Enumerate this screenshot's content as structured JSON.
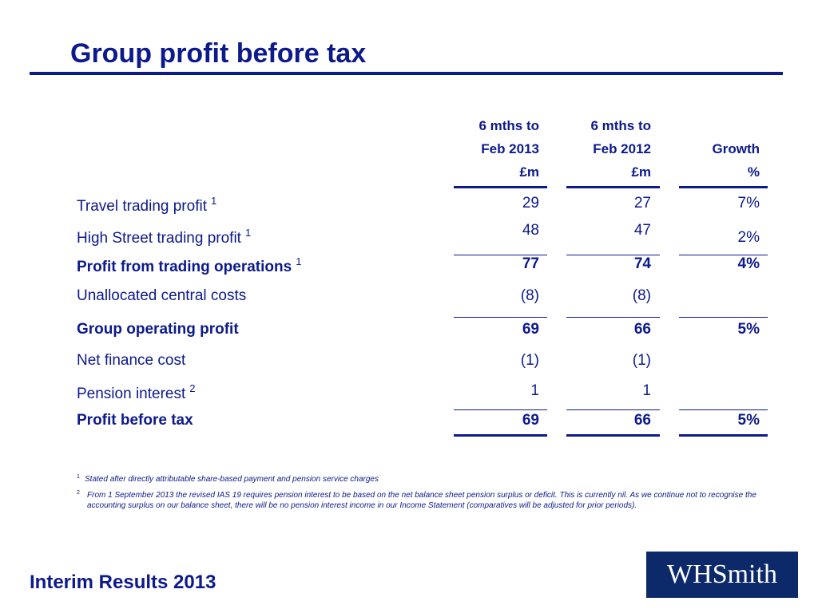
{
  "title": "Group profit before tax",
  "table": {
    "columns": [
      [
        "6 mths to",
        "Feb 2013",
        "£m"
      ],
      [
        "6 mths to",
        "Feb 2012",
        "£m"
      ],
      [
        "Growth",
        "%"
      ]
    ],
    "rows": [
      {
        "label": "Travel trading profit",
        "note": "1",
        "cells": [
          "29",
          "27",
          "7%"
        ]
      },
      {
        "label": "High Street trading profit",
        "note": "1",
        "cells": [
          "48",
          "47",
          "2%"
        ]
      },
      {
        "label": "Profit from trading operations",
        "note": "1",
        "bold": true,
        "cells": [
          "77",
          "74",
          "4%"
        ]
      },
      {
        "label": "Unallocated central costs",
        "cells": [
          "(8)",
          "(8)"
        ]
      },
      {
        "label": "Group operating profit",
        "bold": true,
        "cells": [
          "69",
          "66",
          "5%"
        ]
      },
      {
        "label": "Net finance cost",
        "cells": [
          "(1)",
          "(1)"
        ]
      },
      {
        "label": "Pension interest",
        "note": "2",
        "cells": [
          "1",
          "1"
        ]
      },
      {
        "label": "Profit before tax",
        "bold": true,
        "cells": [
          "69",
          "66",
          "5%"
        ]
      }
    ]
  },
  "footnotes": [
    {
      "mark": "1",
      "text": "Stated after directly attributable share-based payment and pension service charges"
    },
    {
      "mark": "2",
      "text": "From 1 September 2013 the revised IAS 19 requires pension interest to be based on the net balance sheet pension surplus or deficit. This is currently nil. As we continue not to recognise the accounting surplus on our balance sheet, there will be no pension interest income in our Income Statement (comparatives will be adjusted for prior periods)."
    }
  ],
  "footer": "Interim Results 2013",
  "logo": "WHSmith"
}
